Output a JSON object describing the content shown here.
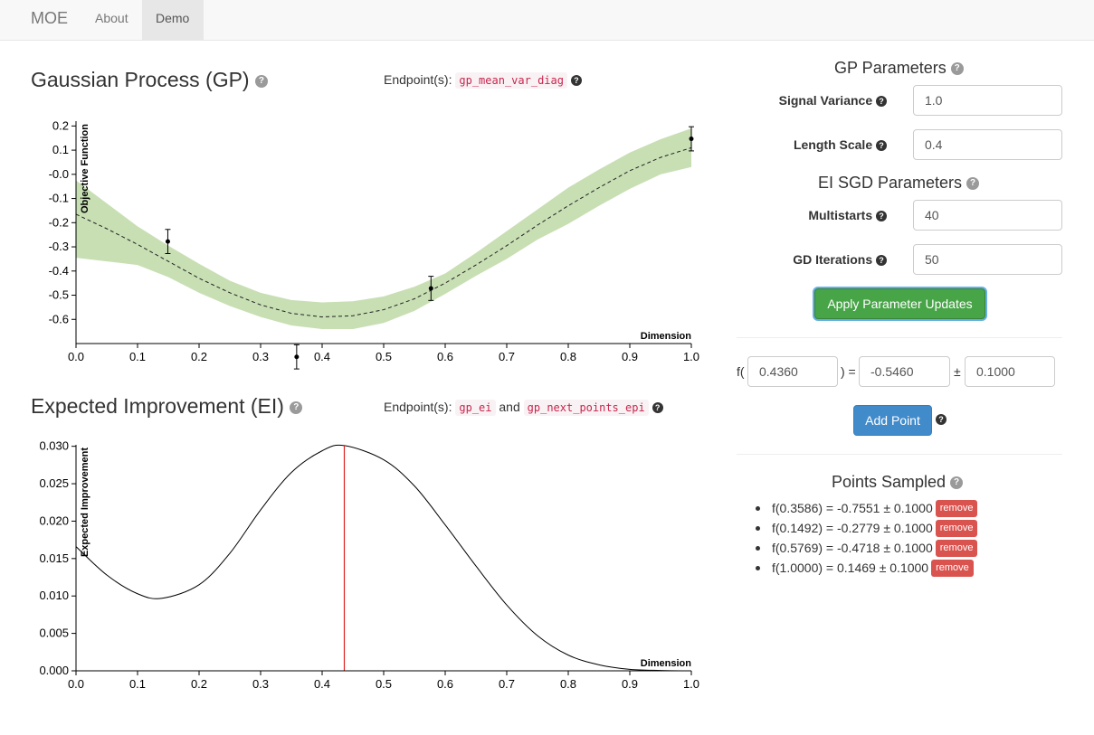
{
  "nav": {
    "brand": "MOE",
    "about": "About",
    "demo": "Demo"
  },
  "gp_panel": {
    "title": "Gaussian Process (GP)",
    "endpoint_label": "Endpoint(s):",
    "endpoint": "gp_mean_var_diag"
  },
  "ei_panel": {
    "title": "Expected Improvement (EI)",
    "endpoint_label": "Endpoint(s):",
    "endpoint_a": "gp_ei",
    "and": "and",
    "endpoint_b": "gp_next_points_epi"
  },
  "chart_data": [
    {
      "type": "line",
      "title": "",
      "xlabel": "Dimension",
      "ylabel": "Objective Function",
      "xlim": [
        0.0,
        1.0
      ],
      "ylim": [
        -0.7,
        0.22
      ],
      "x_ticks": [
        "0.0",
        "0.1",
        "0.2",
        "0.3",
        "0.4",
        "0.5",
        "0.6",
        "0.7",
        "0.8",
        "0.9",
        "1.0"
      ],
      "y_ticks": [
        {
          "v": 0.2,
          "label": "0.2"
        },
        {
          "v": 0.1,
          "label": "0.1"
        },
        {
          "v": 0.0,
          "label": "-0.0"
        },
        {
          "v": -0.1,
          "label": "-0.1"
        },
        {
          "v": -0.2,
          "label": "-0.2"
        },
        {
          "v": -0.3,
          "label": "-0.3"
        },
        {
          "v": -0.4,
          "label": "-0.4"
        },
        {
          "v": -0.5,
          "label": "-0.5"
        },
        {
          "v": -0.6,
          "label": "-0.6"
        }
      ],
      "mean": {
        "x": [
          0.0,
          0.05,
          0.1,
          0.15,
          0.2,
          0.25,
          0.3,
          0.35,
          0.4,
          0.45,
          0.5,
          0.55,
          0.6,
          0.65,
          0.7,
          0.75,
          0.8,
          0.85,
          0.9,
          0.95,
          1.0
        ],
        "y": [
          -0.165,
          -0.225,
          -0.29,
          -0.36,
          -0.43,
          -0.49,
          -0.54,
          -0.575,
          -0.59,
          -0.585,
          -0.56,
          -0.515,
          -0.45,
          -0.375,
          -0.295,
          -0.21,
          -0.13,
          -0.055,
          0.015,
          0.07,
          0.11
        ]
      },
      "band_upper": [
        -0.025,
        -0.12,
        -0.215,
        -0.295,
        -0.37,
        -0.44,
        -0.49,
        -0.52,
        -0.53,
        -0.525,
        -0.505,
        -0.465,
        -0.41,
        -0.325,
        -0.235,
        -0.145,
        -0.055,
        0.02,
        0.09,
        0.145,
        0.19
      ],
      "band_lower": [
        -0.345,
        -0.36,
        -0.375,
        -0.425,
        -0.49,
        -0.545,
        -0.59,
        -0.625,
        -0.64,
        -0.64,
        -0.615,
        -0.565,
        -0.495,
        -0.42,
        -0.35,
        -0.27,
        -0.205,
        -0.13,
        -0.06,
        0.0,
        0.03
      ],
      "points": [
        {
          "x": 0.1492,
          "y": -0.2779,
          "err": 0.05
        },
        {
          "x": 0.3586,
          "y": -0.7551,
          "err": 0.05
        },
        {
          "x": 0.5769,
          "y": -0.4718,
          "err": 0.05
        },
        {
          "x": 1.0,
          "y": 0.1469,
          "err": 0.05
        }
      ],
      "band_color": "#c8dfb4"
    },
    {
      "type": "line",
      "title": "",
      "xlabel": "Dimension",
      "ylabel": "Expected Improvement",
      "xlim": [
        0.0,
        1.0
      ],
      "ylim": [
        0.0,
        0.0302
      ],
      "x_ticks": [
        "0.0",
        "0.1",
        "0.2",
        "0.3",
        "0.4",
        "0.5",
        "0.6",
        "0.7",
        "0.8",
        "0.9",
        "1.0"
      ],
      "y_ticks": [
        {
          "v": 0.03,
          "label": "0.030"
        },
        {
          "v": 0.025,
          "label": "0.025"
        },
        {
          "v": 0.02,
          "label": "0.020"
        },
        {
          "v": 0.015,
          "label": "0.015"
        },
        {
          "v": 0.01,
          "label": "0.010"
        },
        {
          "v": 0.005,
          "label": "0.005"
        },
        {
          "v": 0.0,
          "label": "0.000"
        }
      ],
      "curve": {
        "x": [
          0.0,
          0.05,
          0.1,
          0.14,
          0.2,
          0.25,
          0.3,
          0.35,
          0.4,
          0.436,
          0.5,
          0.55,
          0.6,
          0.65,
          0.7,
          0.75,
          0.8,
          0.85,
          0.9,
          0.95,
          1.0
        ],
        "y": [
          0.0166,
          0.0128,
          0.0103,
          0.0097,
          0.0115,
          0.0157,
          0.0215,
          0.0265,
          0.0294,
          0.0301,
          0.0282,
          0.0247,
          0.0195,
          0.014,
          0.0088,
          0.0047,
          0.0021,
          0.0008,
          0.0002,
          5e-05,
          0.0
        ]
      },
      "marker_x": 0.436,
      "marker_color": "#e02020"
    }
  ],
  "gp_params": {
    "heading": "GP Parameters",
    "signal_variance_label": "Signal Variance",
    "signal_variance": "1.0",
    "length_scale_label": "Length Scale",
    "length_scale": "0.4"
  },
  "ei_params": {
    "heading": "EI SGD Parameters",
    "multistarts_label": "Multistarts",
    "multistarts": "40",
    "gd_iterations_label": "GD Iterations",
    "gd_iterations": "50",
    "apply_label": "Apply Parameter Updates"
  },
  "point_form": {
    "f_open": "f(",
    "x": "0.4360",
    "eq": ") =",
    "y": "-0.5460",
    "pm": "±",
    "noise": "0.1000",
    "add_label": "Add Point"
  },
  "points_sampled": {
    "heading": "Points Sampled",
    "remove_label": "remove",
    "items": [
      "f(0.3586) = -0.7551 ± 0.1000",
      "f(0.1492) = -0.2779 ± 0.1000",
      "f(0.5769) = -0.4718 ± 0.1000",
      "f(1.0000) = 0.1469 ± 0.1000"
    ]
  },
  "help_glyph": "?",
  "colors": {
    "success": "#47a447",
    "primary": "#428bca",
    "danger": "#d9534f",
    "code": "#c7254e"
  }
}
